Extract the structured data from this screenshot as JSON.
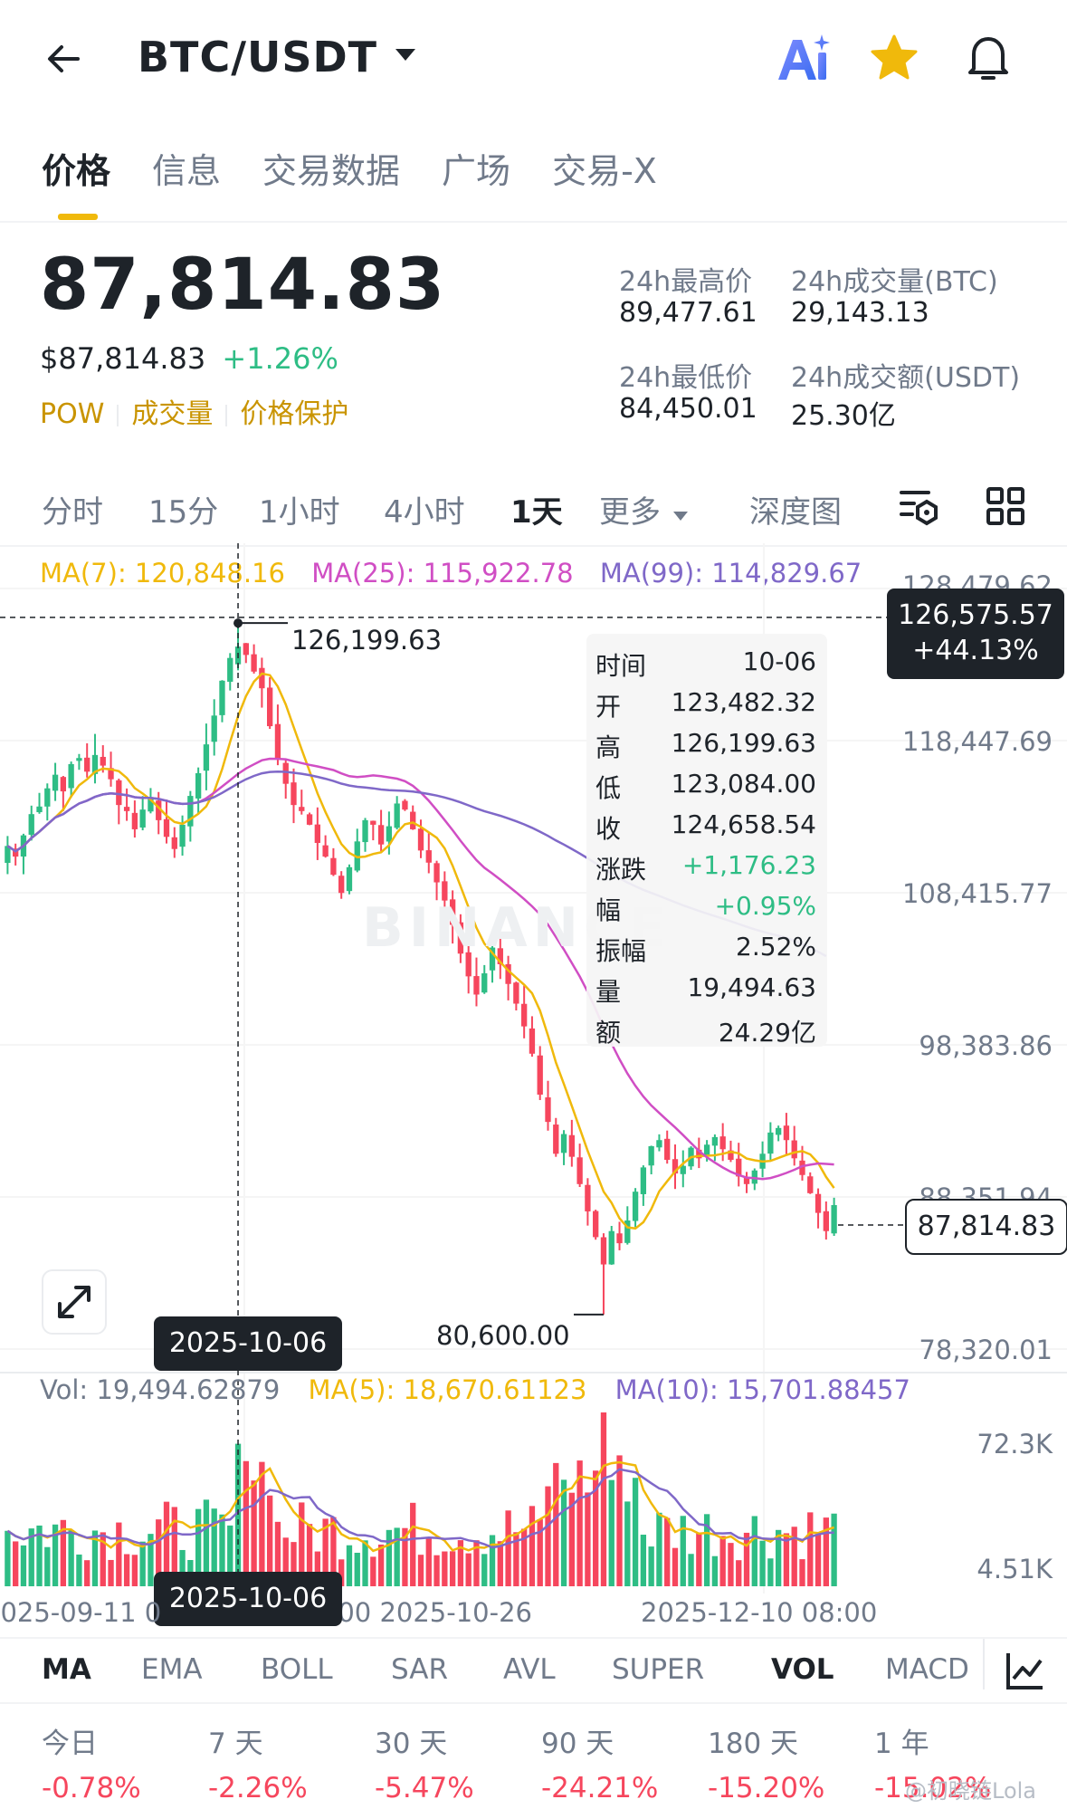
{
  "header": {
    "pair": "BTC/USDT"
  },
  "tabs": [
    {
      "label": "价格",
      "active": true
    },
    {
      "label": "信息"
    },
    {
      "label": "交易数据"
    },
    {
      "label": "广场"
    },
    {
      "label": "交易-X"
    }
  ],
  "price": {
    "last": "87,814.83",
    "usd": "$87,814.83",
    "change": "+1.26%",
    "tags": [
      "POW",
      "成交量",
      "价格保护"
    ]
  },
  "stats": {
    "high_label": "24h最高价",
    "high": "89,477.61",
    "vol_btc_label": "24h成交量(BTC)",
    "vol_btc": "29,143.13",
    "low_label": "24h最低价",
    "low": "84,450.01",
    "vol_usdt_label": "24h成交额(USDT)",
    "vol_usdt": "25.30亿"
  },
  "intervals": [
    "分时",
    "15分",
    "1小时",
    "4小时",
    "1天",
    "更多",
    "深度图"
  ],
  "active_interval": "1天",
  "ma": {
    "ma7": "MA(7): 120,848.16",
    "ma25": "MA(25): 115,922.78",
    "ma99": "MA(99): 114,829.67"
  },
  "chart_data": {
    "type": "candlestick",
    "y_axis_ticks": [
      "128,479.62",
      "118,447.69",
      "108,415.77",
      "98,383.86",
      "88,351.94",
      "78,320.01"
    ],
    "ylim": [
      78320.01,
      128479.62
    ],
    "x_axis_ticks": [
      "2025-09-11 08:00",
      "2025-10-26 08:00",
      "2025-12-10 08:00"
    ],
    "max_marker": "126,199.63",
    "min_marker": "80,600.00",
    "crosshair_price": "126,575.57",
    "crosshair_pct": "+44.13%",
    "crosshair_date": "2025-10-06",
    "current_price": "87,814.83",
    "colors": {
      "up": "#2ebd85",
      "down": "#f6465d",
      "ma7": "#f0b90b",
      "ma25": "#d04ec4",
      "ma99": "#7f68c8"
    },
    "tooltip": [
      {
        "k": "时间",
        "v": "10-06"
      },
      {
        "k": "开",
        "v": "123,482.32"
      },
      {
        "k": "高",
        "v": "126,199.63"
      },
      {
        "k": "低",
        "v": "123,084.00"
      },
      {
        "k": "收",
        "v": "124,658.54"
      },
      {
        "k": "涨跌",
        "v": "+1,176.23",
        "color": "green"
      },
      {
        "k": "幅",
        "v": "+0.95%",
        "color": "green"
      },
      {
        "k": "振幅",
        "v": "2.52%"
      },
      {
        "k": "量",
        "v": "19,494.63"
      },
      {
        "k": "额",
        "v": "24.29亿"
      }
    ],
    "close_series": [
      111500,
      110800,
      112200,
      113600,
      114100,
      115300,
      116200,
      115100,
      116900,
      117300,
      116400,
      117500,
      116800,
      115900,
      114200,
      113800,
      112600,
      113900,
      114700,
      113200,
      112100,
      111300,
      112900,
      114800,
      116300,
      118200,
      120100,
      122400,
      123900,
      124650,
      124100,
      123000,
      121900,
      119400,
      117200,
      115600,
      114200,
      113800,
      112900,
      111700,
      110800,
      109600,
      108400,
      110100,
      111800,
      113200,
      112900,
      111600,
      112800,
      114300,
      113900,
      112600,
      111200,
      110400,
      109100,
      107900,
      106300,
      104400,
      102900,
      101700,
      103100,
      104800,
      103700,
      102400,
      101100,
      99600,
      97800,
      95100,
      93300,
      91200,
      92500,
      91000,
      89200,
      87400,
      85700,
      83900,
      86100,
      85300,
      86800,
      88700,
      90300,
      91700,
      92100,
      90800,
      89900,
      90400,
      91600,
      90900,
      91800,
      92300,
      91500,
      90800,
      89700,
      89200,
      90100,
      91200,
      92600,
      92900,
      92100,
      90900,
      89800,
      88600,
      87300,
      86100,
      87814
    ]
  },
  "volume": {
    "vol": "Vol: 19,494.62879",
    "ma5": "MA(5): 18,670.61123",
    "ma10": "MA(10): 15,701.88457",
    "ticks": [
      "72.3K",
      "4.51K"
    ]
  },
  "indicators": [
    "MA",
    "EMA",
    "BOLL",
    "SAR",
    "AVL",
    "SUPER",
    "VOL",
    "MACD"
  ],
  "active_indicators": [
    "MA",
    "VOL"
  ],
  "performance": [
    {
      "label": "今日",
      "value": "-0.78%"
    },
    {
      "label": "7 天",
      "value": "-2.26%"
    },
    {
      "label": "30 天",
      "value": "-5.47%"
    },
    {
      "label": "90 天",
      "value": "-24.21%"
    },
    {
      "label": "180 天",
      "value": "-15.20%"
    },
    {
      "label": "1 年",
      "value": "-15.02%"
    }
  ],
  "watermark": "BINANCE",
  "credit": "@初晓链Lola"
}
